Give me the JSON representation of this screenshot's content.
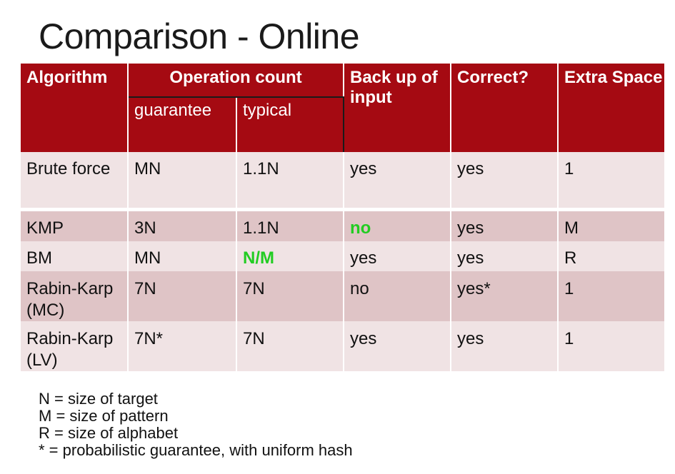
{
  "title": "Comparison - Online",
  "table": {
    "headers": {
      "algorithm": "Algorithm",
      "operation_count": "Operation count",
      "guarantee": "guarantee",
      "typical": "typical",
      "backup": "Back up of input",
      "correct": "Correct?",
      "extra_space": "Extra Space"
    },
    "rows": [
      {
        "algorithm": "Brute force",
        "guarantee": "MN",
        "typical": "1.1N",
        "backup": "yes",
        "correct": "yes",
        "space": "1"
      },
      {
        "algorithm": "KMP",
        "guarantee": "3N",
        "typical": "1.1N",
        "backup": "no",
        "correct": "yes",
        "space": "M"
      },
      {
        "algorithm": "BM",
        "guarantee": "MN",
        "typical": "N/M",
        "backup": "yes",
        "correct": "yes",
        "space": "R"
      },
      {
        "algorithm": "Rabin-Karp (MC)",
        "guarantee": "7N",
        "typical": "7N",
        "backup": "no",
        "correct": "yes*",
        "space": "1"
      },
      {
        "algorithm": "Rabin-Karp (LV)",
        "guarantee": "7N*",
        "typical": "7N",
        "backup": "yes",
        "correct": "yes",
        "space": "1"
      }
    ],
    "colors": {
      "header_bg": "#a50a12",
      "row_light": "#f0e3e4",
      "row_dark": "#dfc4c6",
      "highlight": "#22cc22"
    }
  },
  "legend": [
    "N = size of target",
    "M = size of pattern",
    "R = size of alphabet",
    "* = probabilistic guarantee, with uniform hash"
  ]
}
